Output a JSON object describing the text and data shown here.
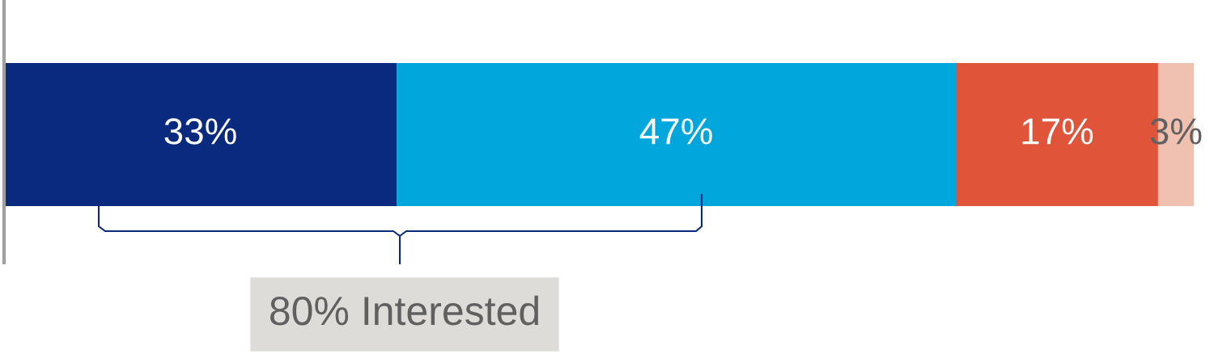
{
  "chart_data": {
    "type": "bar",
    "orientation": "horizontal",
    "stacked": true,
    "categories": [
      null
    ],
    "xlim": [
      0,
      100
    ],
    "series": [
      {
        "color": "#0a2a80",
        "values": [
          33
        ],
        "value_labels": [
          "33%"
        ]
      },
      {
        "color": "#00a6dc",
        "values": [
          47
        ],
        "value_labels": [
          "47%"
        ]
      },
      {
        "color": "#e0553a",
        "values": [
          17
        ],
        "value_labels": [
          "17%"
        ]
      },
      {
        "color": "#f0c0b0",
        "values": [
          3
        ],
        "value_labels": [
          "3%"
        ]
      }
    ],
    "annotations": [
      "80% Interested"
    ]
  }
}
